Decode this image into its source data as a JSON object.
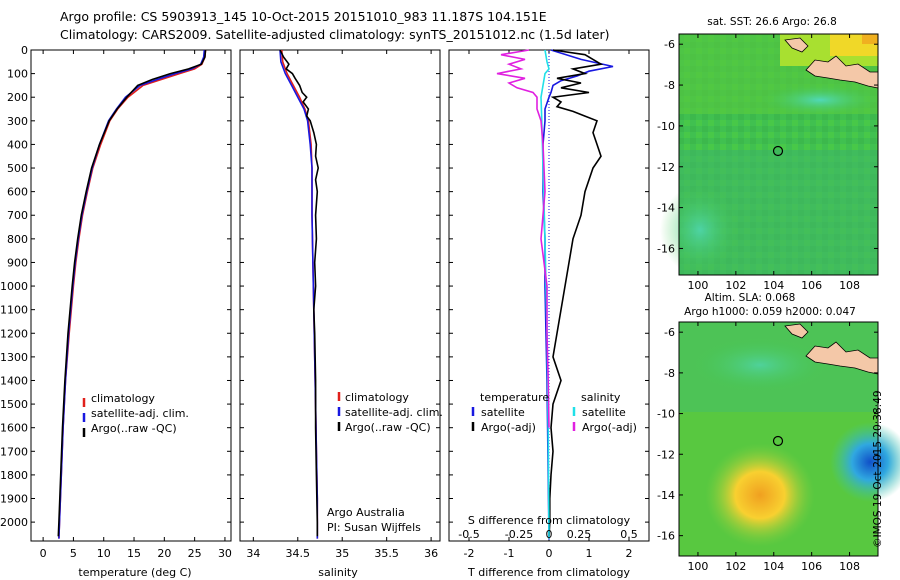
{
  "header": {
    "line1": "Argo profile: CS 5903913_145 10-Oct-2015 20151010_983 11.187S 104.151E",
    "line2": "Climatology: CARS2009. Satellite-adjusted climatology: synTS_20151012.nc (1.5d later)"
  },
  "colors": {
    "climatology": "#e0201c",
    "satellite": "#1818e0",
    "argo": "#000000",
    "salinity_sat": "#20e0e8",
    "salinity_argo": "#e020e0"
  },
  "legend_clim": [
    "climatology",
    "satellite-adj. clim.",
    "Argo(..raw -QC)"
  ],
  "legend_diff": {
    "temp_title": "temperature",
    "sal_title": "salinity",
    "satellite": "satellite",
    "argo_adj": "Argo(-adj)"
  },
  "salinity_note": [
    "Argo Australia",
    "PI: Susan Wijffels"
  ],
  "diff_top_label": "S difference from climatology",
  "map_sst": {
    "title": "sat. SST: 26.6  Argo: 26.8"
  },
  "map_sla": {
    "title1": "Altim. SLA: 0.068",
    "title2": "Argo h1000: 0.059 h2000: 0.047"
  },
  "footer": "©IMOS 19-Oct-2015 20:38:49",
  "chart_data": [
    {
      "type": "line",
      "name": "temperature",
      "xlabel": "temperature (deg C)",
      "ylabel": "",
      "xlim": [
        -2,
        31
      ],
      "ylim": [
        2080,
        0
      ],
      "xticks": [
        0,
        5,
        10,
        15,
        20,
        25,
        30
      ],
      "yticks": [
        0,
        100,
        200,
        300,
        400,
        500,
        600,
        700,
        800,
        900,
        1000,
        1100,
        1200,
        1300,
        1400,
        1500,
        1600,
        1700,
        1800,
        1900,
        2000
      ],
      "series": [
        {
          "name": "climatology",
          "depth": [
            0,
            30,
            60,
            80,
            100,
            125,
            150,
            200,
            250,
            300,
            400,
            500,
            600,
            700,
            800,
            900,
            1000,
            1200,
            1400,
            1600,
            1800,
            2000,
            2070
          ],
          "values": [
            26.8,
            26.7,
            26.2,
            25.0,
            22.5,
            19.5,
            16.5,
            14.0,
            12.3,
            11.0,
            9.5,
            8.2,
            7.3,
            6.5,
            5.9,
            5.4,
            5.0,
            4.3,
            3.7,
            3.3,
            3.0,
            2.7,
            2.6
          ]
        },
        {
          "name": "satellite-adj. clim.",
          "depth": [
            0,
            30,
            60,
            80,
            100,
            125,
            150,
            200,
            250,
            300,
            400,
            500,
            600,
            700,
            800,
            900,
            1000,
            1200,
            1400,
            1600,
            1800,
            2000,
            2070
          ],
          "values": [
            26.6,
            26.5,
            26.0,
            24.5,
            21.8,
            18.8,
            16.0,
            13.6,
            12.1,
            10.8,
            9.3,
            8.1,
            7.2,
            6.4,
            5.8,
            5.3,
            4.9,
            4.2,
            3.7,
            3.3,
            3.0,
            2.7,
            2.6
          ]
        },
        {
          "name": "Argo(..raw -QC)",
          "depth": [
            0,
            30,
            60,
            80,
            100,
            125,
            150,
            200,
            250,
            300,
            400,
            500,
            600,
            700,
            800,
            900,
            1000,
            1200,
            1400,
            1600,
            1800,
            2000,
            2060
          ],
          "values": [
            26.8,
            26.7,
            26.1,
            24.0,
            21.0,
            18.0,
            15.6,
            13.8,
            12.2,
            10.9,
            9.3,
            8.0,
            7.1,
            6.3,
            5.7,
            5.2,
            4.8,
            4.1,
            3.6,
            3.2,
            2.9,
            2.6,
            2.5
          ]
        }
      ]
    },
    {
      "type": "line",
      "name": "salinity",
      "xlabel": "salinity",
      "ylabel": "",
      "xlim": [
        33.85,
        36.1
      ],
      "ylim": [
        2080,
        0
      ],
      "xticks": [
        34,
        34.5,
        35,
        35.5,
        36
      ],
      "series": [
        {
          "name": "climatology",
          "depth": [
            0,
            50,
            100,
            150,
            200,
            250,
            300,
            400,
            500,
            700,
            900,
            1100,
            1300,
            1500,
            1700,
            1900,
            2070
          ],
          "values": [
            34.32,
            34.33,
            34.38,
            34.45,
            34.52,
            34.58,
            34.62,
            34.65,
            34.66,
            34.66,
            34.67,
            34.68,
            34.69,
            34.7,
            34.71,
            34.72,
            34.72
          ]
        },
        {
          "name": "satellite-adj. clim.",
          "depth": [
            0,
            50,
            100,
            150,
            200,
            250,
            300,
            400,
            500,
            700,
            900,
            1100,
            1300,
            1500,
            1700,
            1900,
            2070
          ],
          "values": [
            34.3,
            34.31,
            34.36,
            34.43,
            34.5,
            34.57,
            34.61,
            34.64,
            34.66,
            34.66,
            34.67,
            34.68,
            34.69,
            34.7,
            34.71,
            34.72,
            34.72
          ]
        },
        {
          "name": "Argo(..raw -QC)",
          "depth": [
            0,
            30,
            60,
            80,
            100,
            120,
            150,
            180,
            200,
            220,
            250,
            280,
            300,
            350,
            400,
            450,
            500,
            550,
            600,
            700,
            800,
            900,
            1000,
            1100,
            1200,
            1400,
            1600,
            1800,
            2000,
            2060
          ],
          "values": [
            34.3,
            34.34,
            34.4,
            34.37,
            34.44,
            34.47,
            34.52,
            34.55,
            34.6,
            34.56,
            34.62,
            34.6,
            34.64,
            34.68,
            34.71,
            34.7,
            34.73,
            34.7,
            34.72,
            34.7,
            34.71,
            34.69,
            34.7,
            34.68,
            34.69,
            34.7,
            34.7,
            34.71,
            34.72,
            34.72
          ]
        }
      ]
    },
    {
      "type": "line",
      "name": "difference from climatology",
      "xlabel": "T difference from climatology",
      "ylabel": "",
      "xlim": [
        -2.5,
        2.5
      ],
      "ylim": [
        2080,
        0
      ],
      "xticks": [
        -2,
        -1,
        0,
        1,
        2
      ],
      "xtick_labels_S": [
        "-0.5",
        "-0.25",
        "0",
        "0.25",
        "0.5"
      ],
      "series": [
        {
          "name": "temperature satellite",
          "depth": [
            0,
            40,
            70,
            90,
            110,
            130,
            150,
            180,
            200,
            250,
            300,
            400,
            600,
            800,
            1000,
            1400,
            1800,
            2070
          ],
          "values": [
            0.05,
            0.8,
            1.6,
            1.0,
            0.7,
            0.3,
            0.1,
            0.05,
            0,
            -0.1,
            -0.1,
            -0.15,
            -0.15,
            -0.1,
            -0.1,
            -0.05,
            -0.02,
            0
          ]
        },
        {
          "name": "temperature Argo(-adj)",
          "depth": [
            0,
            20,
            40,
            60,
            80,
            100,
            120,
            140,
            160,
            180,
            200,
            220,
            240,
            260,
            280,
            300,
            350,
            400,
            450,
            500,
            600,
            700,
            800,
            900,
            1000,
            1100,
            1200,
            1300,
            1400,
            1500,
            1600,
            1700,
            1800,
            1900,
            2000,
            2060
          ],
          "values": [
            0.1,
            0.9,
            1.1,
            1.3,
            0.6,
            0.9,
            0.2,
            0.8,
            0.3,
            1.0,
            0.1,
            0.3,
            0.2,
            0.6,
            0.9,
            1.2,
            1.1,
            1.2,
            1.3,
            1.1,
            0.9,
            0.8,
            0.6,
            0.5,
            0.4,
            0.3,
            0.2,
            0.1,
            0.3,
            0.1,
            0.05,
            0.1,
            0.05,
            0.02,
            0.02,
            0
          ]
        },
        {
          "name": "salinity satellite",
          "depth": [
            0,
            50,
            80,
            100,
            150,
            200,
            300,
            500,
            800,
            1200,
            1600,
            2070
          ],
          "values": [
            -0.1,
            -0.05,
            0,
            -0.1,
            -0.15,
            -0.2,
            -0.18,
            -0.15,
            -0.1,
            -0.05,
            -0.02,
            0
          ]
        },
        {
          "name": "salinity Argo(-adj)",
          "depth": [
            0,
            20,
            40,
            60,
            80,
            100,
            120,
            140,
            160,
            180,
            200,
            250,
            300,
            400,
            600,
            800,
            1000,
            1200,
            1400,
            1600
          ],
          "values": [
            -0.5,
            -1.2,
            -0.6,
            -1.0,
            -0.7,
            -1.3,
            -0.6,
            -1.0,
            -0.8,
            -0.4,
            -0.3,
            -0.3,
            -0.2,
            -0.15,
            -0.1,
            -0.2,
            -0.05,
            -0.05,
            -0.02,
            0
          ]
        }
      ]
    }
  ],
  "maps": {
    "xticks": [
      100,
      102,
      104,
      106,
      108
    ],
    "yticks": [
      -6,
      -8,
      -10,
      -12,
      -14,
      -16
    ],
    "argo_marker": {
      "lon": 104.151,
      "lat": -11.187
    }
  }
}
